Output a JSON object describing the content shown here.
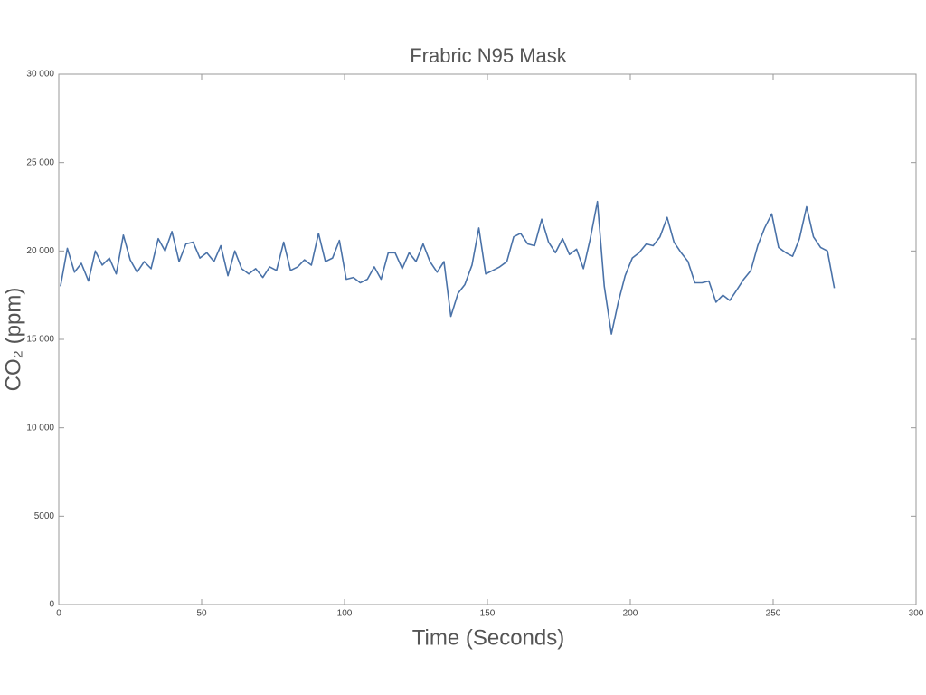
{
  "chart_data": {
    "type": "line",
    "title": "Frabric N95 Mask",
    "x_label": "Time (Seconds)",
    "y_label": "CO₂ (ppm)",
    "xlim": [
      0,
      300
    ],
    "xticks": [
      0,
      50,
      100,
      150,
      200,
      250,
      300
    ],
    "ylim": [
      0,
      30000
    ],
    "yticks": [
      0,
      5000,
      {
        "value": 10000,
        "label": "10 000"
      },
      {
        "value": 15000,
        "label": "15 000"
      },
      {
        "value": 20000,
        "label": "20 000"
      },
      {
        "value": 25000,
        "label": "25 000"
      },
      {
        "value": 30000,
        "label": "30 000"
      }
    ],
    "x": [
      0.6,
      3.0,
      5.5,
      7.9,
      10.4,
      12.8,
      15.2,
      17.7,
      20.1,
      22.6,
      25.0,
      27.4,
      29.9,
      32.3,
      34.8,
      37.2,
      39.6,
      42.1,
      44.5,
      47.0,
      49.4,
      51.8,
      54.3,
      56.7,
      59.2,
      61.6,
      64.0,
      66.5,
      68.9,
      71.4,
      73.8,
      76.2,
      78.7,
      81.1,
      83.6,
      86.0,
      88.4,
      90.9,
      93.3,
      95.8,
      98.2,
      100.6,
      103.1,
      105.5,
      108.0,
      110.4,
      112.8,
      115.3,
      117.7,
      120.2,
      122.6,
      125.0,
      127.5,
      129.9,
      132.4,
      134.8,
      137.2,
      139.7,
      142.1,
      144.6,
      147.0,
      149.4,
      151.9,
      154.3,
      156.8,
      159.2,
      161.6,
      164.1,
      166.5,
      169.0,
      171.4,
      173.8,
      176.3,
      178.7,
      181.2,
      183.6,
      186.0,
      188.5,
      190.9,
      193.4,
      195.8,
      198.2,
      200.7,
      203.1,
      205.6,
      208.0,
      210.4,
      212.9,
      215.3,
      217.8,
      220.2,
      222.6,
      225.1,
      227.5,
      230.0,
      232.4,
      234.8,
      237.3,
      239.7,
      242.2,
      244.6,
      247.0,
      249.5,
      251.9,
      254.4,
      256.8,
      259.2,
      261.7,
      264.1,
      266.6,
      269.0,
      271.4
    ],
    "series": [
      {
        "color": "#4a72a8",
        "values": [
          18000,
          20150,
          18800,
          19300,
          18300,
          20000,
          19200,
          19600,
          18700,
          20900,
          19500,
          18800,
          19400,
          19000,
          20700,
          20000,
          21100,
          19400,
          20400,
          20500,
          19600,
          19900,
          19400,
          20300,
          18600,
          20000,
          19000,
          18700,
          19000,
          18500,
          19100,
          18900,
          20500,
          18900,
          19100,
          19500,
          19200,
          21000,
          19400,
          19600,
          20600,
          18400,
          18500,
          18200,
          18400,
          19100,
          18400,
          19900,
          19900,
          19000,
          19900,
          19400,
          20400,
          19400,
          18800,
          19400,
          16300,
          17600,
          18100,
          19200,
          21300,
          18700,
          18900,
          19100,
          19400,
          20800,
          21000,
          20400,
          20300,
          21800,
          20500,
          19900,
          20700,
          19800,
          20100,
          19000,
          20700,
          22800,
          18000,
          15300,
          17100,
          18600,
          19600,
          19900,
          20400,
          20300,
          20800,
          21900,
          20500,
          19900,
          19400,
          18200,
          18200,
          18300,
          17100,
          17500,
          17200,
          17800,
          18400,
          18900,
          20300,
          21300,
          22100,
          20200,
          19900,
          19700,
          20700,
          22500,
          20800,
          20200,
          20000,
          17900
        ]
      }
    ]
  }
}
